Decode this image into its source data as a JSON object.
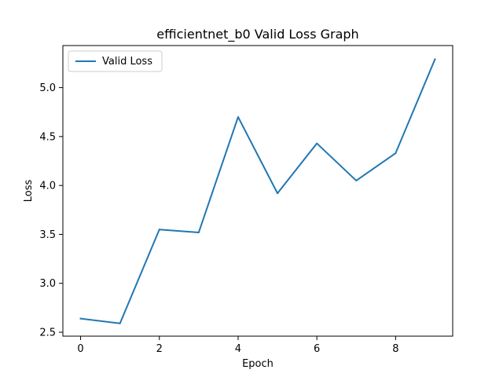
{
  "chart_data": {
    "type": "line",
    "title": "efficientnet_b0 Valid Loss Graph",
    "xlabel": "Epoch",
    "ylabel": "Loss",
    "x": [
      0,
      1,
      2,
      3,
      4,
      5,
      6,
      7,
      8,
      9
    ],
    "series": [
      {
        "name": "Valid Loss",
        "color": "#1f77b4",
        "values": [
          2.64,
          2.59,
          3.55,
          3.52,
          4.7,
          3.92,
          4.43,
          4.05,
          4.33,
          5.29
        ]
      }
    ],
    "xlim": [
      -0.45,
      9.45
    ],
    "ylim": [
      2.46,
      5.43
    ],
    "xticks": [
      0,
      2,
      4,
      6,
      8
    ],
    "yticks": [
      2.5,
      3.0,
      3.5,
      4.0,
      4.5,
      5.0
    ],
    "xtick_labels": [
      "0",
      "2",
      "4",
      "6",
      "8"
    ],
    "ytick_labels": [
      "2.5",
      "3.0",
      "3.5",
      "4.0",
      "4.5",
      "5.0"
    ],
    "grid": false,
    "legend_position": "top-left"
  }
}
